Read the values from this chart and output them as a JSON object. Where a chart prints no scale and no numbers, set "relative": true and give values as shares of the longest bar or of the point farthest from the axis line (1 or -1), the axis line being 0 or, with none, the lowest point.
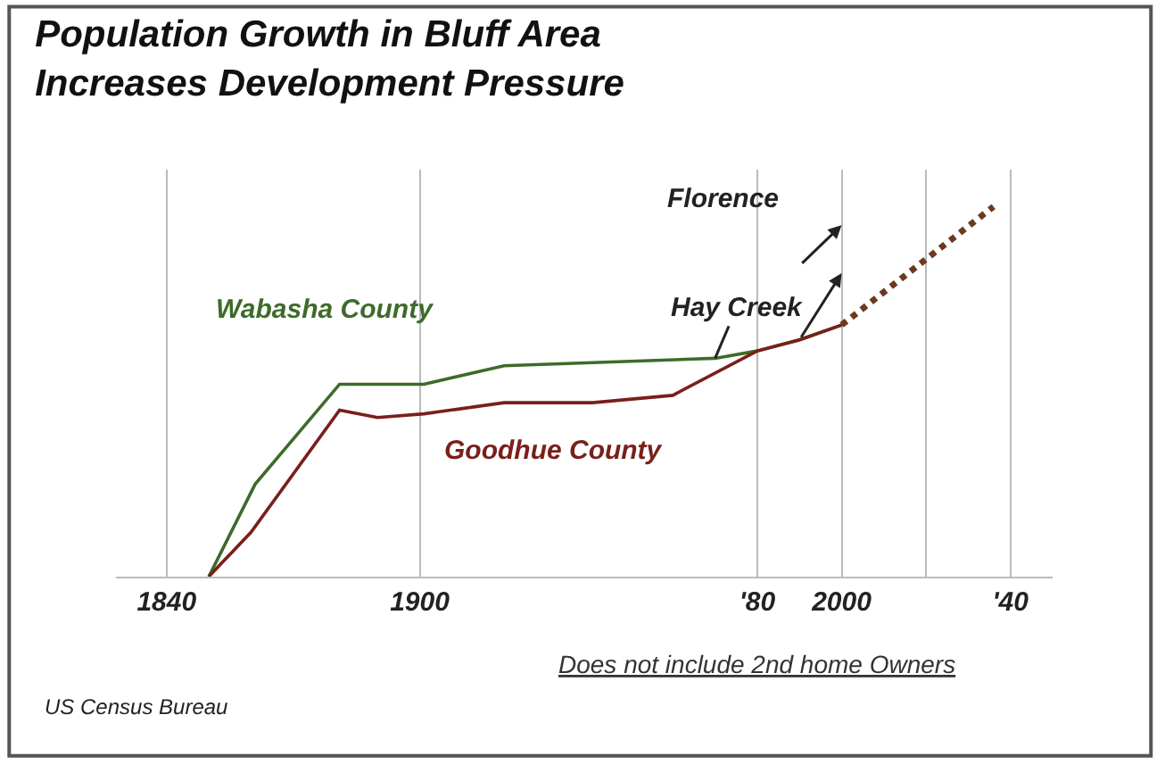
{
  "chart_data": {
    "type": "line",
    "title": "Population Growth in Bluff Area\nIncreases Development Pressure",
    "relative": true,
    "grid": "x",
    "legend": false,
    "line_style": "solid",
    "xlim": [
      1828,
      2050
    ],
    "xticks": [
      1840,
      1900,
      {
        "value": 1980,
        "label": "'80"
      },
      2000,
      {
        "value": 2020,
        "label": null
      },
      {
        "value": 2040,
        "label": "'40"
      }
    ],
    "series": [
      {
        "name": "Wabasha County",
        "color": "#3d6b2a",
        "x": [
          1850,
          1861,
          1881,
          1901,
          1920,
          1970,
          1980,
          1990,
          2000
        ],
        "values": [
          0,
          0.25,
          0.52,
          0.52,
          0.57,
          0.59,
          0.61,
          0.64,
          0.68
        ]
      },
      {
        "name": "Goodhue County",
        "color": "#7a1f1a",
        "x": [
          1850,
          1860,
          1881,
          1890,
          1901,
          1920,
          1941,
          1960,
          1980,
          1990,
          2000
        ],
        "values": [
          0,
          0.12,
          0.45,
          0.43,
          0.44,
          0.47,
          0.47,
          0.49,
          0.61,
          0.64,
          0.68
        ]
      },
      {
        "color": "#6b3a1e",
        "line_style": "dotted",
        "x": [
          2000,
          2036
        ],
        "values": [
          0.68,
          1.0
        ]
      }
    ],
    "annotations": [
      {
        "text": "Hay Creek",
        "x": 1970,
        "y": 0.59
      },
      "Florence",
      "Does not include 2nd home Owners",
      "US Census Bureau"
    ]
  }
}
